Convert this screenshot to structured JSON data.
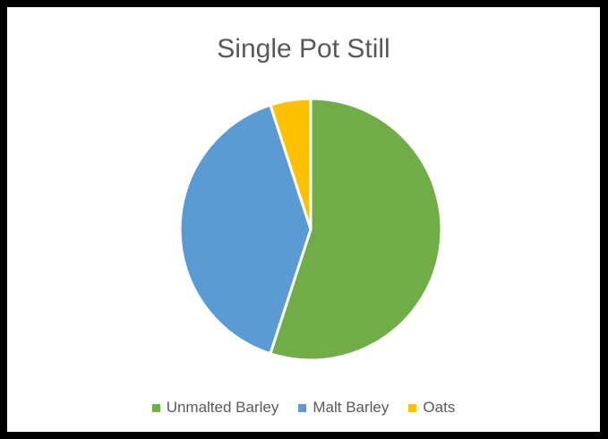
{
  "chart_data": {
    "type": "pie",
    "title": "Single Pot Still",
    "categories": [
      "Unmalted Barley",
      "Malt Barley",
      "Oats"
    ],
    "values": [
      55,
      40,
      5
    ],
    "colors": [
      "#70AD47",
      "#5B9BD5",
      "#FFC000"
    ],
    "legend_position": "bottom",
    "start_angle_deg": 0,
    "direction": "clockwise"
  }
}
